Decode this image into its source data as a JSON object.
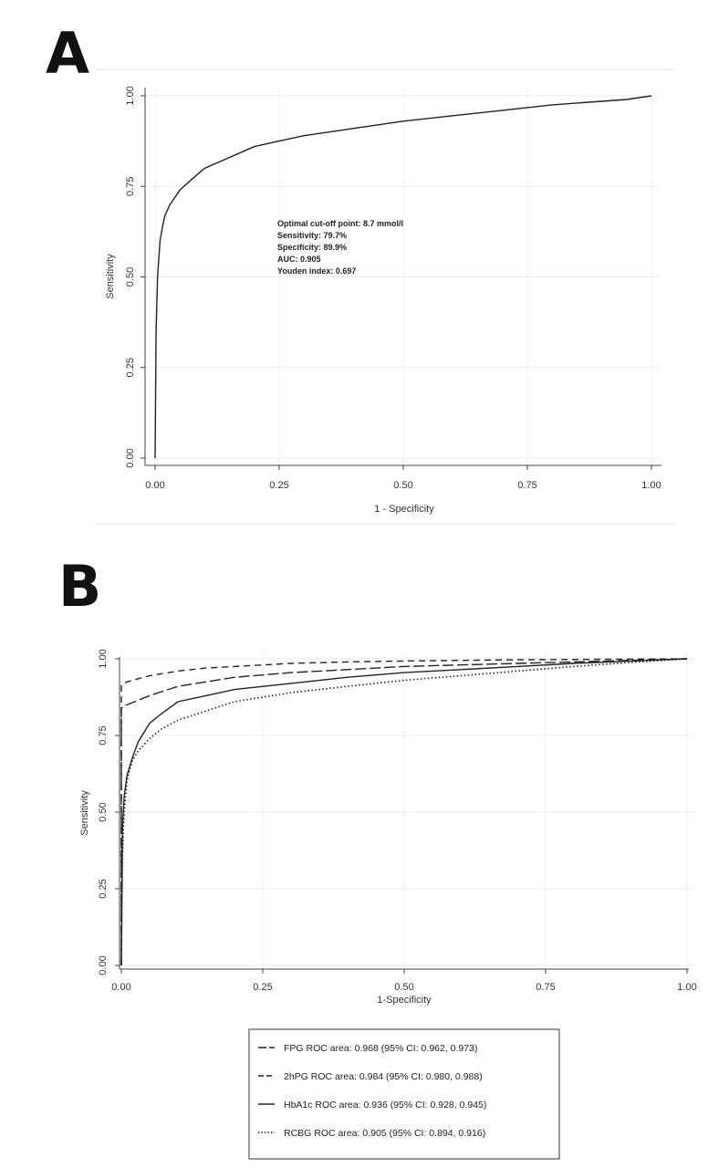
{
  "panels": {
    "a_letter": "A",
    "b_letter": "B"
  },
  "chart_data": [
    {
      "panel": "A",
      "type": "line",
      "xlabel": "1 - Specificity",
      "ylabel": "Sensitivity",
      "xlim": [
        0,
        1
      ],
      "ylim": [
        0,
        1
      ],
      "x_ticks": [
        "0.00",
        "0.25",
        "0.50",
        "0.75",
        "1.00"
      ],
      "y_ticks": [
        "0.00",
        "0.25",
        "0.50",
        "0.75",
        "1.00"
      ],
      "grid": true,
      "annotations": [
        "Optimal cut-off point: 8.7 mmol/l",
        "Sensitivity: 79.7%",
        "Specificity: 89.9%",
        "AUC: 0.905",
        "Youden index: 0.697"
      ],
      "series": [
        {
          "style": "solid",
          "color": "#222222",
          "x": [
            0,
            0.002,
            0.005,
            0.01,
            0.015,
            0.02,
            0.03,
            0.04,
            0.05,
            0.07,
            0.1,
            0.15,
            0.2,
            0.25,
            0.3,
            0.4,
            0.5,
            0.6,
            0.7,
            0.8,
            0.9,
            0.95,
            1.0
          ],
          "y": [
            0,
            0.35,
            0.5,
            0.6,
            0.64,
            0.67,
            0.7,
            0.72,
            0.74,
            0.765,
            0.8,
            0.83,
            0.86,
            0.875,
            0.89,
            0.91,
            0.93,
            0.945,
            0.96,
            0.975,
            0.985,
            0.99,
            1.0
          ]
        }
      ]
    },
    {
      "panel": "B",
      "type": "line",
      "xlabel": "1-Specificity",
      "ylabel": "Sensitivity",
      "xlim": [
        0,
        1
      ],
      "ylim": [
        0,
        1
      ],
      "x_ticks": [
        "0.00",
        "0.25",
        "0.50",
        "0.75",
        "1.00"
      ],
      "y_ticks": [
        "0.00",
        "0.25",
        "0.50",
        "0.75",
        "1.00"
      ],
      "grid": true,
      "legend_position": "bottom",
      "series": [
        {
          "name": "FPG ROC area: 0.968 (95% CI: 0.962, 0.973)",
          "style": "longdash",
          "color": "#222222",
          "x": [
            0,
            0.0,
            0.01,
            0.03,
            0.05,
            0.1,
            0.15,
            0.2,
            0.3,
            0.4,
            0.5,
            0.6,
            0.7,
            0.8,
            0.9,
            1.0
          ],
          "y": [
            0,
            0.84,
            0.85,
            0.865,
            0.88,
            0.91,
            0.925,
            0.94,
            0.955,
            0.965,
            0.975,
            0.98,
            0.985,
            0.99,
            0.995,
            1.0
          ]
        },
        {
          "name": "2hPG ROC area: 0.984 (95% CI: 0.980, 0.988)",
          "style": "dash",
          "color": "#222222",
          "x": [
            0,
            0.0,
            0.01,
            0.03,
            0.05,
            0.1,
            0.15,
            0.2,
            0.3,
            0.4,
            0.5,
            0.6,
            0.7,
            0.8,
            0.9,
            1.0
          ],
          "y": [
            0,
            0.915,
            0.925,
            0.935,
            0.945,
            0.96,
            0.97,
            0.975,
            0.985,
            0.99,
            0.993,
            0.995,
            0.997,
            0.998,
            0.999,
            1.0
          ]
        },
        {
          "name": "HbA1c ROC area: 0.936 (95% CI: 0.928, 0.945)",
          "style": "solid",
          "color": "#222222",
          "x": [
            0,
            0.002,
            0.005,
            0.01,
            0.02,
            0.03,
            0.05,
            0.07,
            0.1,
            0.15,
            0.2,
            0.3,
            0.4,
            0.5,
            0.6,
            0.7,
            0.8,
            0.9,
            1.0
          ],
          "y": [
            0,
            0.45,
            0.55,
            0.62,
            0.68,
            0.73,
            0.79,
            0.82,
            0.86,
            0.88,
            0.9,
            0.92,
            0.94,
            0.955,
            0.965,
            0.975,
            0.985,
            0.993,
            1.0
          ]
        },
        {
          "name": "RCBG ROC area: 0.905 (95% CI: 0.894, 0.916)",
          "style": "dot",
          "color": "#222222",
          "x": [
            0,
            0.002,
            0.005,
            0.01,
            0.015,
            0.02,
            0.03,
            0.05,
            0.07,
            0.1,
            0.15,
            0.2,
            0.25,
            0.3,
            0.4,
            0.5,
            0.6,
            0.7,
            0.8,
            0.9,
            1.0
          ],
          "y": [
            0,
            0.35,
            0.5,
            0.6,
            0.64,
            0.67,
            0.7,
            0.74,
            0.77,
            0.8,
            0.83,
            0.86,
            0.875,
            0.89,
            0.91,
            0.93,
            0.945,
            0.96,
            0.975,
            0.988,
            1.0
          ]
        }
      ]
    }
  ]
}
